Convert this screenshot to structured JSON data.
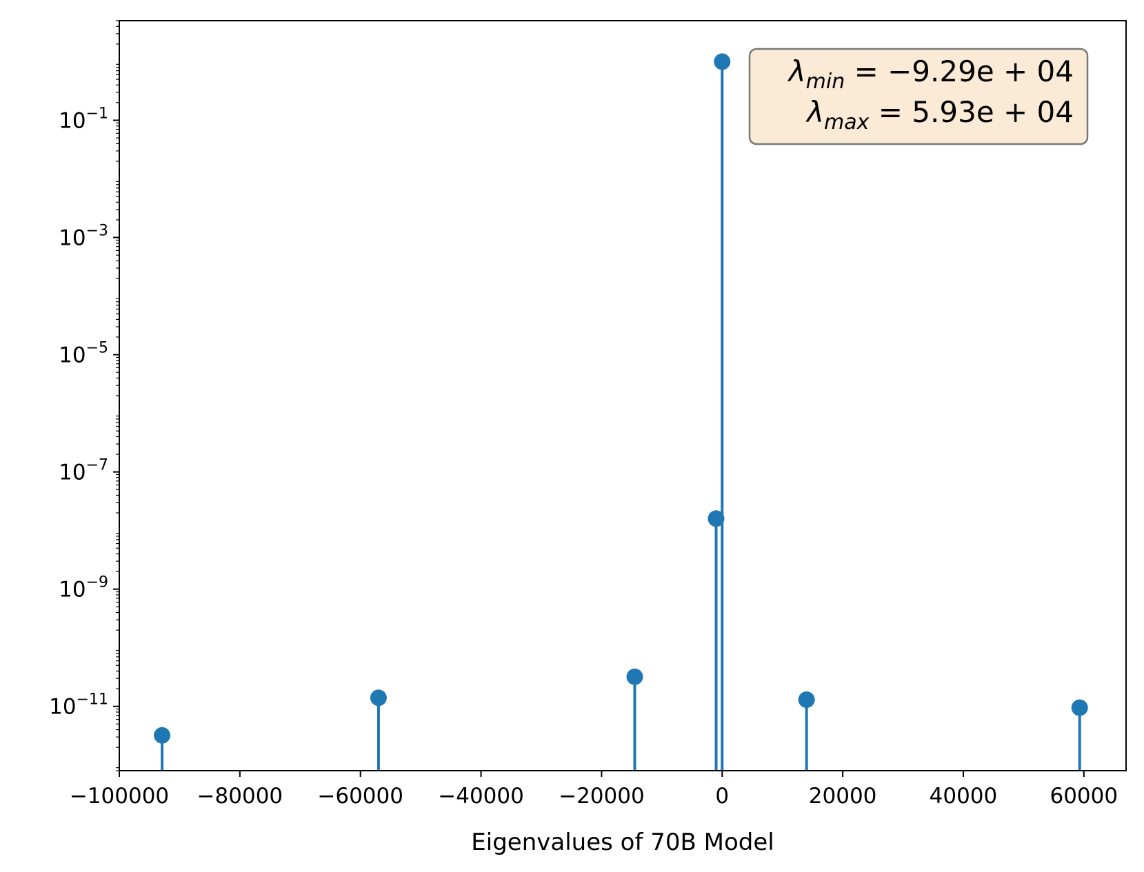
{
  "chart_data": {
    "type": "stem",
    "xlabel": "Eigenvalues of 70B Model",
    "ylabel": "",
    "yscale": "log",
    "xlim": [
      -100000,
      67000
    ],
    "ylim": [
      8e-13,
      5.0
    ],
    "x_ticks": [
      {
        "value": -100000,
        "label": "−100000"
      },
      {
        "value": -80000,
        "label": "−80000"
      },
      {
        "value": -60000,
        "label": "−60000"
      },
      {
        "value": -40000,
        "label": "−40000"
      },
      {
        "value": -20000,
        "label": "−20000"
      },
      {
        "value": 0,
        "label": "0"
      },
      {
        "value": 20000,
        "label": "20000"
      },
      {
        "value": 40000,
        "label": "40000"
      },
      {
        "value": 60000,
        "label": "60000"
      }
    ],
    "y_ticks": [
      {
        "value": 0.1,
        "base": "10",
        "exp": "−1"
      },
      {
        "value": 0.001,
        "base": "10",
        "exp": "−3"
      },
      {
        "value": 1e-05,
        "base": "10",
        "exp": "−5"
      },
      {
        "value": 1e-07,
        "base": "10",
        "exp": "−7"
      },
      {
        "value": 1e-09,
        "base": "10",
        "exp": "−9"
      },
      {
        "value": 1e-11,
        "base": "10",
        "exp": "−11"
      }
    ],
    "points": [
      {
        "x": -92900,
        "y": 3.2e-12
      },
      {
        "x": -57000,
        "y": 1.4e-11
      },
      {
        "x": -14500,
        "y": 3.2e-11
      },
      {
        "x": -1000,
        "y": 1.6e-08
      },
      {
        "x": 0,
        "y": 1.0
      },
      {
        "x": 14000,
        "y": 1.3e-11
      },
      {
        "x": 59300,
        "y": 9.5e-12
      }
    ],
    "annotation": {
      "lines": [
        {
          "symbol": "λ",
          "sub": "min",
          "text": " = −9.29e + 04"
        },
        {
          "symbol": "λ",
          "sub": "max",
          "text": " = 5.93e + 04"
        }
      ],
      "position": "top-right"
    },
    "grid": false,
    "colors": {
      "series": "#1f77b4",
      "annotation_bg": "#fbebd6",
      "annotation_border": "#777777"
    }
  }
}
